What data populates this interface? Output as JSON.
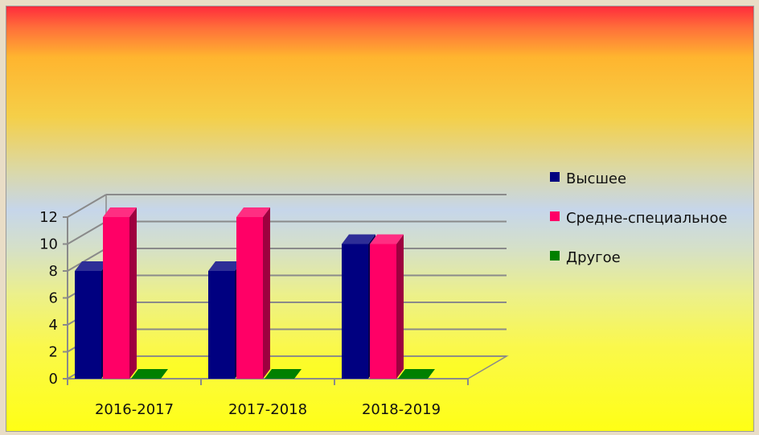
{
  "chart_data": {
    "type": "bar",
    "categories": [
      "2016-2017",
      "2017-2018",
      "2018-2019"
    ],
    "series": [
      {
        "name": "Высшее",
        "values": [
          8,
          8,
          10
        ],
        "color": "#000080"
      },
      {
        "name": "Средне-специальное",
        "values": [
          12,
          12,
          10
        ],
        "color": "#ff0066"
      },
      {
        "name": "Другое",
        "values": [
          0,
          0,
          0
        ],
        "color": "#008000"
      }
    ],
    "yticks": [
      "0",
      "2",
      "4",
      "6",
      "8",
      "10",
      "12"
    ],
    "ylim": [
      0,
      12
    ],
    "grid": true,
    "three_d": true,
    "legend_position": "right"
  }
}
